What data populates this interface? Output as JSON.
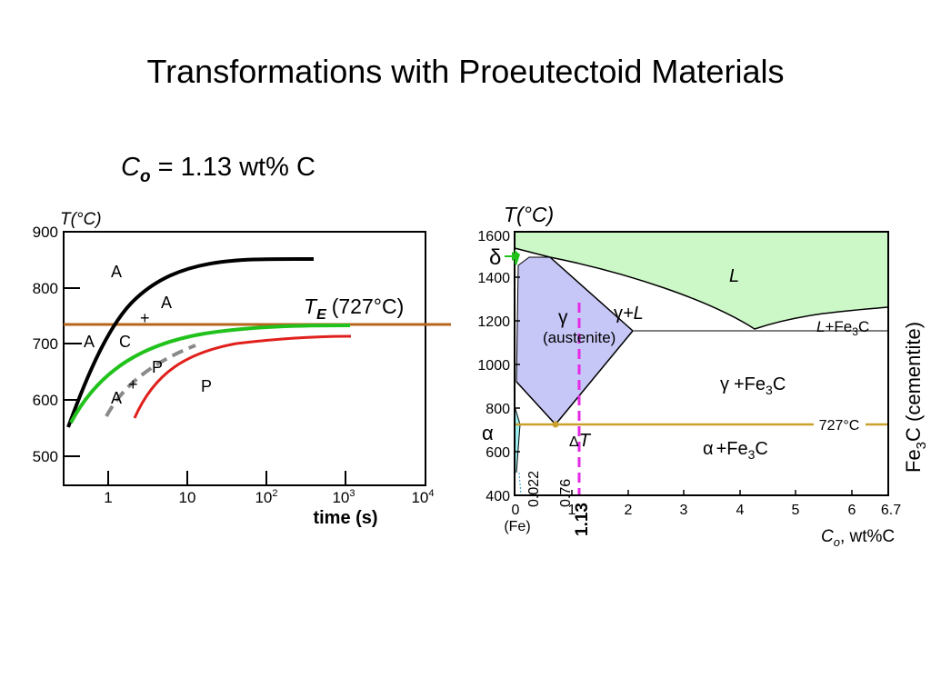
{
  "slide": {
    "title": "Transformations with Proeutectoid Materials",
    "composition": {
      "symbol": "C",
      "subscript": "o",
      "text": "= 1.13 wt% C"
    }
  },
  "ttt_diagram": {
    "y_axis_label": "T(°C)",
    "y_ticks": [
      "900",
      "800",
      "700",
      "600",
      "500"
    ],
    "x_ticks": [
      {
        "base": "1",
        "exp": ""
      },
      {
        "base": "10",
        "exp": ""
      },
      {
        "base": "10",
        "exp": "2"
      },
      {
        "base": "10",
        "exp": "3"
      },
      {
        "base": "10",
        "exp": "4"
      }
    ],
    "x_axis_label": "time (s)",
    "te_label": {
      "symbol": "T",
      "subscript": "E",
      "value": "(727°C)"
    },
    "region_labels": {
      "a_top": "A",
      "a_mid": "A",
      "plus_top": "+",
      "a_left": "A",
      "c_left": "C",
      "p_mid": "P",
      "plus_bottom": "+",
      "a_bottom": "A",
      "p_right": "P"
    },
    "colors": {
      "te_line": "#b8651b",
      "start_curve": "#000000",
      "cementite_curve": "#22c21d",
      "pearlite_start_curve": "#8a8a8a",
      "pearlite_end_curve": "#e0201c"
    }
  },
  "phase_diagram": {
    "y_axis_label": "T(°C)",
    "y_ticks": [
      "1600",
      "1400",
      "1200",
      "1000",
      "800",
      "600",
      "400"
    ],
    "x_ticks": [
      "0",
      "1",
      "2",
      "3",
      "4",
      "5",
      "6",
      "6.7"
    ],
    "x_small_ticks": [
      "0.022",
      "0.76"
    ],
    "x_fe_label": "(Fe)",
    "composition_marker": "1.13",
    "x_axis_label": {
      "symbol": "C",
      "subscript": "o",
      "rest": ", wt%C"
    },
    "right_axis_label": {
      "pre": "Fe",
      "subscript": "3",
      "post": "C (cementite)"
    },
    "eutectoid_label": "727°C",
    "region_labels": {
      "delta": "δ",
      "liquid": "L",
      "gamma": "γ",
      "austenite": "(austenite)",
      "gamma_liquid": {
        "symbol": "γ",
        "rest": "+L"
      },
      "liquid_fe3c": {
        "symbol": "L",
        "rest": "+Fe",
        "subscript": "3",
        "tail": "C"
      },
      "gamma_fe3c": {
        "symbol": "γ",
        "rest": "+Fe",
        "subscript": "3",
        "tail": "C"
      },
      "alpha": "α",
      "alpha_fe3c": {
        "symbol": "α",
        "rest": "+Fe",
        "subscript": "3",
        "tail": "C"
      },
      "delta_t": {
        "symbol": "Δ",
        "rest": "T"
      }
    },
    "colors": {
      "liquid_fill": "#ccf7c6",
      "austenite_fill": "#c6c6f7",
      "eutectoid_line": "#c9a12c",
      "composition_line": "#e52ae5",
      "alpha_fill": "#9ef0f0"
    }
  }
}
